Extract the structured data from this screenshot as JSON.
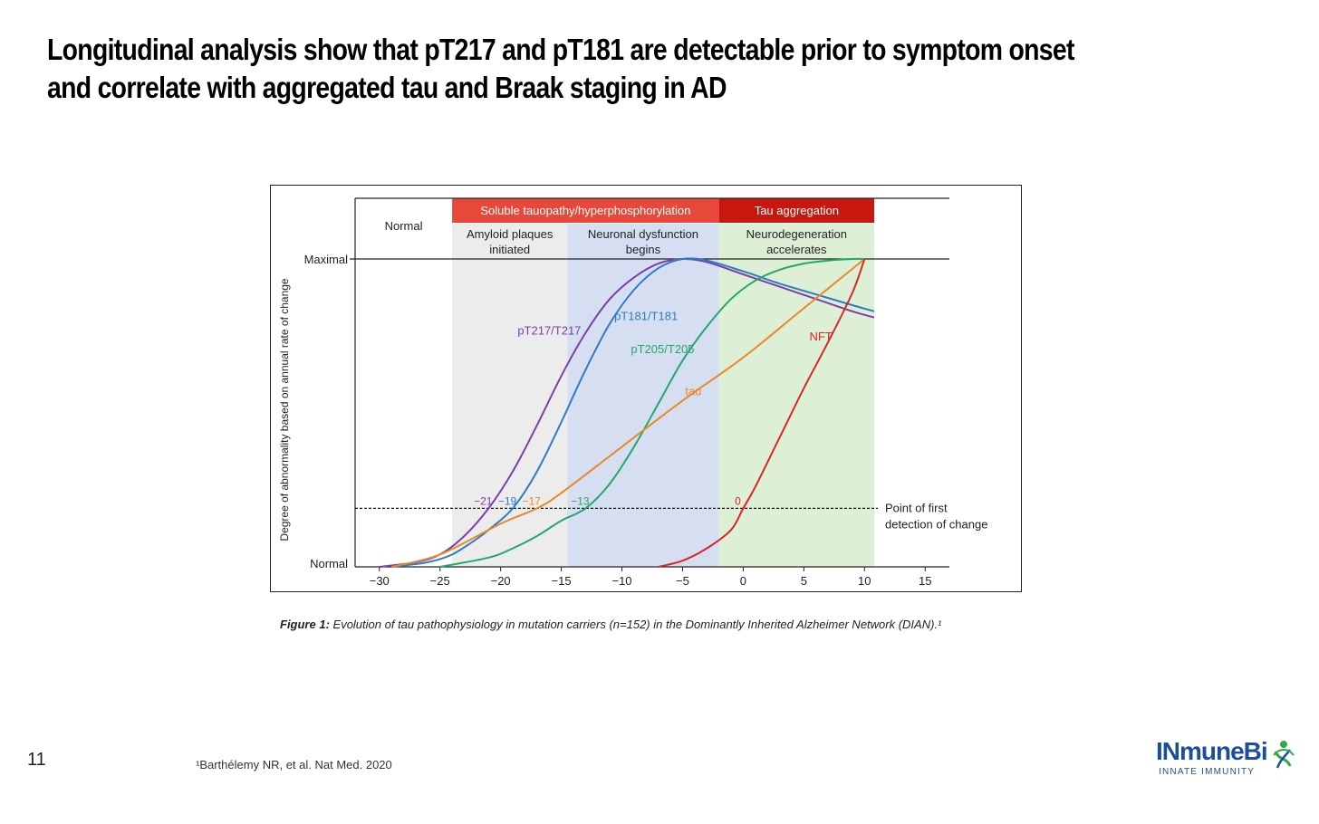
{
  "slide": {
    "title": "Longitudinal analysis show that pT217 and pT181 are detectable prior to symptom onset and correlate with aggregated tau and Braak staging in AD",
    "number": "11",
    "footnote": "¹Barthélemy NR, et al. Nat Med. 2020",
    "caption_label": "Figure 1:",
    "caption_text": " Evolution of tau pathophysiology in mutation carriers (n=152) in the Dominantly Inherited Alzheimer Network (DIAN).¹",
    "logo_text": "INmuneBi",
    "logo_sub": "INNATE IMMUNITY",
    "colors": {
      "brand": "#1b4f9c",
      "soluble_header": "#e8483a",
      "aggregation_header": "#c8170f"
    }
  },
  "chart_data": {
    "type": "line",
    "title": "",
    "xlabel": "",
    "ylabel": "Degree of abnormality based on annual rate of change",
    "xlim": [
      -32,
      17
    ],
    "ylim": [
      0,
      100
    ],
    "x_ticks": [
      -30,
      -25,
      -20,
      -15,
      -10,
      -5,
      0,
      5,
      10,
      15
    ],
    "x_tick_labels": [
      "−30",
      "−25",
      "−20",
      "−15",
      "−10",
      "−5",
      "0",
      "5",
      "10",
      "15"
    ],
    "y_labels": {
      "top": "Maximal",
      "bottom": "Normal"
    },
    "detection_threshold": 19,
    "detection_label": [
      "Point of first",
      "detection of change"
    ],
    "phases": [
      {
        "name": "Normal",
        "desc": [],
        "x_start": -32,
        "x_end": -24
      },
      {
        "name": "",
        "desc": [
          "Amyloid plaques",
          "initiated"
        ],
        "x_start": -24,
        "x_end": -14.5,
        "fill": "#ececec"
      },
      {
        "name": "",
        "desc": [
          "Neuronal dysfunction",
          "begins"
        ],
        "x_start": -14.5,
        "x_end": -2,
        "fill": "#d6dff2"
      },
      {
        "name": "",
        "desc": [
          "Neurodegeneration",
          "accelerates"
        ],
        "x_start": -2,
        "x_end": 10.8,
        "fill": "#ddefd5"
      }
    ],
    "header_bands": [
      {
        "label": "Soluble tauopathy/hyperphosphorylation",
        "x_start": -24,
        "x_end": -2,
        "color": "#e8483a"
      },
      {
        "label": "Tau aggregation",
        "x_start": -2,
        "x_end": 10.8,
        "color": "#c8170f"
      }
    ],
    "series": [
      {
        "name": "pT217/T217",
        "color": "#7b3fa8",
        "x": [
          -30,
          -27,
          -25,
          -23,
          -21,
          -19,
          -17,
          -15,
          -13,
          -11,
          -9,
          -7,
          -5,
          -3,
          0,
          3,
          6,
          9,
          10.8
        ],
        "y": [
          0,
          1.5,
          4,
          10,
          19,
          31,
          46,
          62,
          76,
          87,
          94,
          98.5,
          100,
          99,
          95,
          91,
          87,
          83,
          81
        ]
      },
      {
        "name": "pT181/T181",
        "color": "#2f7cc0",
        "x": [
          -29,
          -26,
          -24,
          -22,
          -21,
          -19,
          -17,
          -15,
          -13,
          -11,
          -9,
          -7,
          -5,
          -3,
          0,
          3,
          6,
          9,
          10.8
        ],
        "y": [
          0,
          1.5,
          4,
          9,
          12,
          19,
          31,
          47,
          64,
          79,
          90,
          97,
          100,
          99.5,
          96,
          92,
          88.5,
          85,
          83
        ]
      },
      {
        "name": "pT205/T205",
        "color": "#22a86a",
        "x": [
          -25,
          -21,
          -19,
          -17,
          -15,
          -13,
          -11,
          -9,
          -7,
          -5,
          -3,
          -1,
          1,
          3,
          5,
          7,
          9,
          10
        ],
        "y": [
          0,
          3,
          6,
          10,
          15,
          19,
          27,
          39,
          53,
          67,
          78,
          87,
          93,
          96.5,
          98.5,
          99.5,
          100,
          100
        ]
      },
      {
        "name": "tau",
        "color": "#e8882a",
        "x": [
          -29,
          -25,
          -20,
          -17,
          -15,
          -10,
          -5,
          0,
          5,
          10
        ],
        "y": [
          0,
          4,
          14,
          19,
          24,
          39,
          54,
          68,
          84,
          100
        ]
      },
      {
        "name": "NFT",
        "color": "#d8252a",
        "x": [
          -7,
          -5,
          -3,
          -1,
          0,
          1,
          3,
          5,
          7,
          9,
          10
        ],
        "y": [
          0,
          2,
          6,
          12,
          19,
          26,
          42,
          58,
          73,
          89,
          100
        ]
      }
    ],
    "onset_markers": [
      {
        "label": "−21",
        "x": -21,
        "color": "#7b3fa8"
      },
      {
        "label": "−19",
        "x": -19,
        "color": "#2f7cc0"
      },
      {
        "label": "−17",
        "x": -17,
        "color": "#e8882a"
      },
      {
        "label": "−13",
        "x": -13,
        "color": "#22a86a"
      },
      {
        "label": "0",
        "x": 0,
        "color": "#d8252a"
      }
    ],
    "curve_labels": [
      {
        "text": "pT217/T217",
        "series": "pT217/T217"
      },
      {
        "text": "pT181/T181",
        "series": "pT181/T181"
      },
      {
        "text": "pT205/T205",
        "series": "pT205/T205"
      },
      {
        "text": "tau",
        "series": "tau"
      },
      {
        "text": "NFT",
        "series": "NFT"
      }
    ]
  }
}
